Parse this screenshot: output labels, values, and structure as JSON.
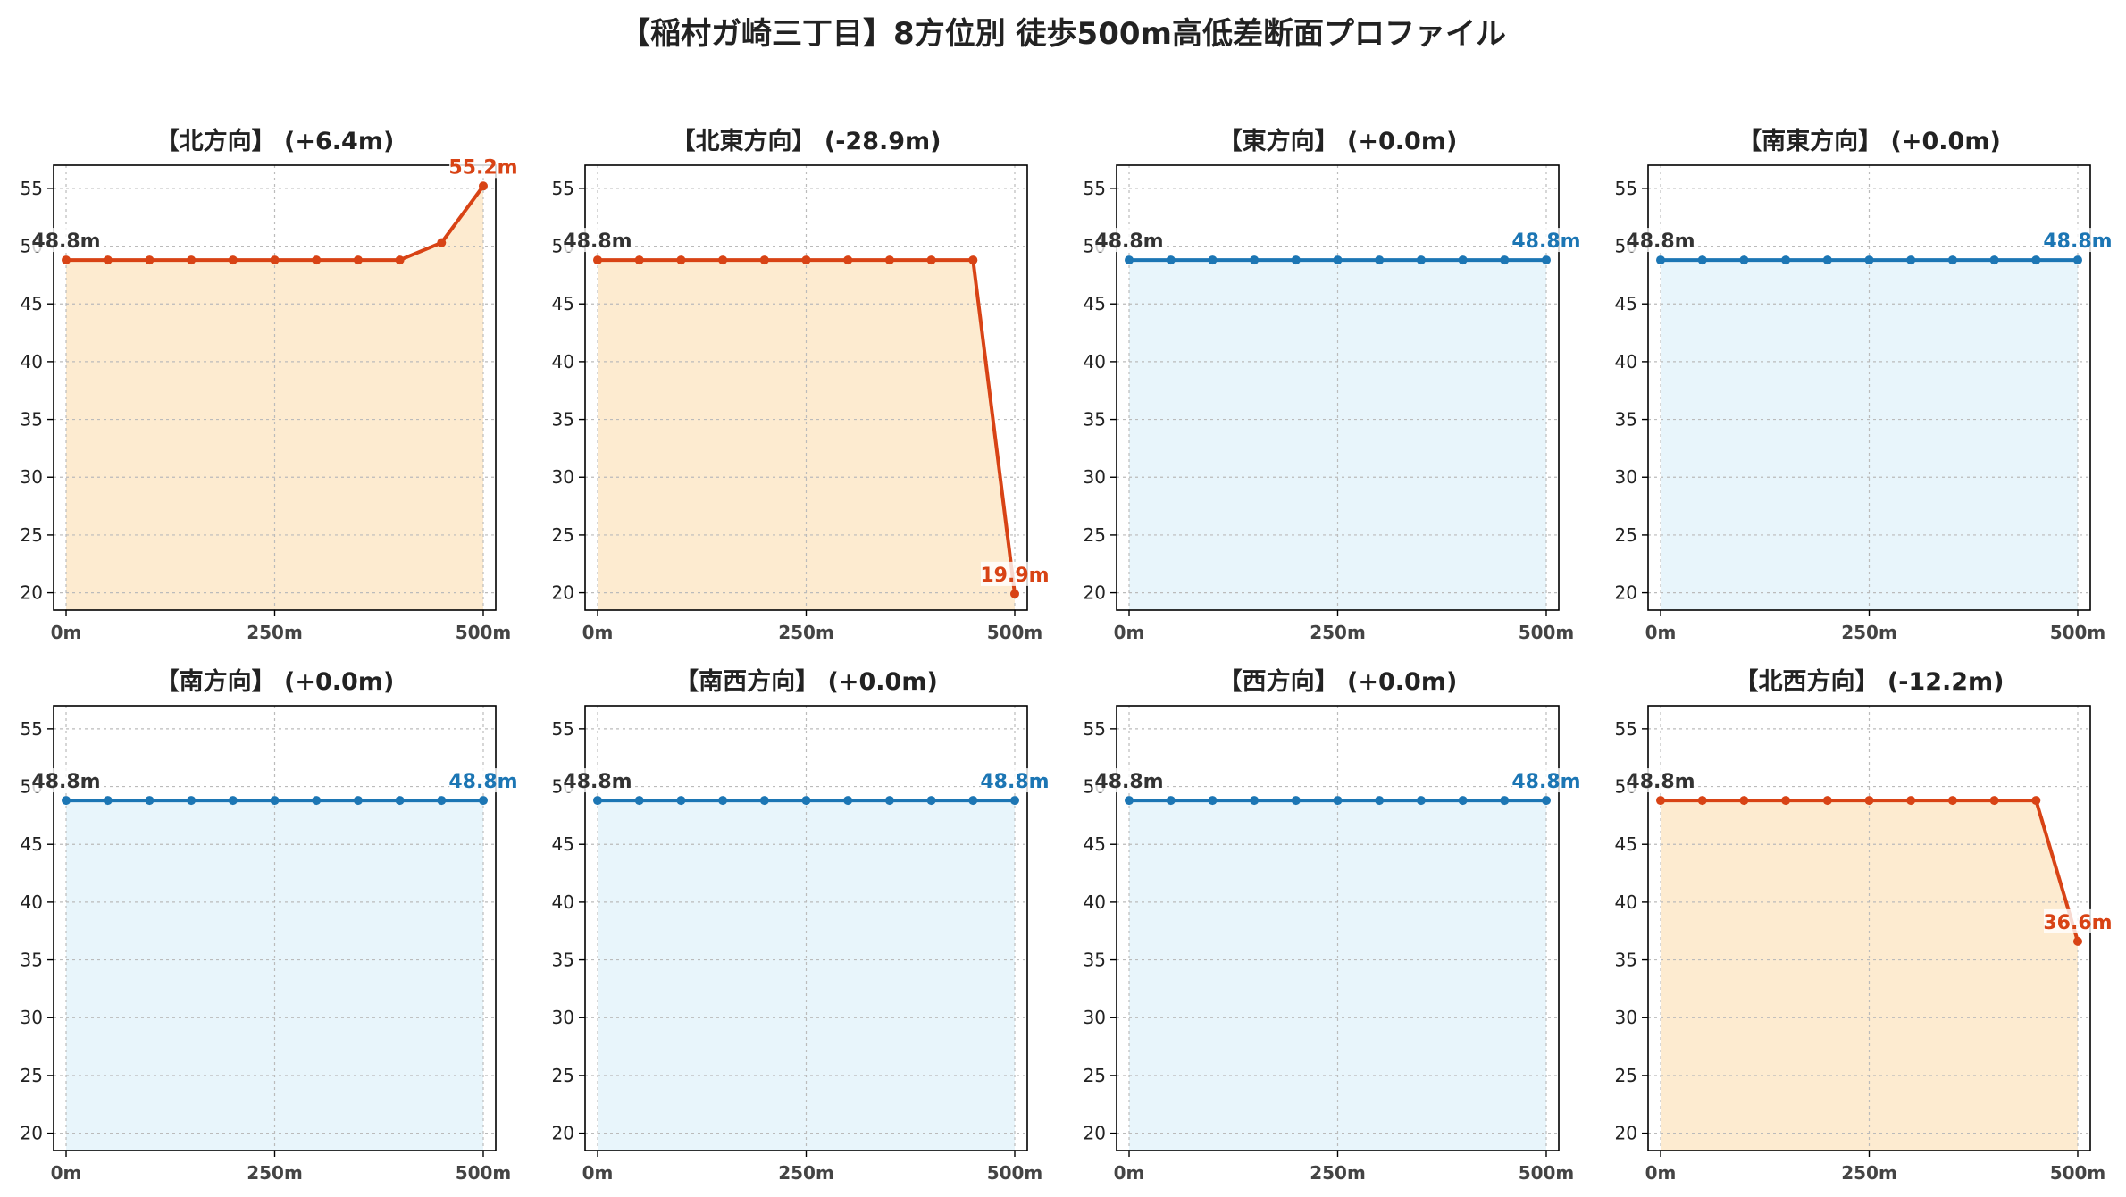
{
  "title": "【稲村ガ崎三丁目】8方位別 徒歩500m高低差断面プロファイル",
  "colors": {
    "rise_fall_line": "#d84315",
    "rise_fall_fill": "#fdebd0",
    "flat_line": "#1c76b4",
    "flat_fill": "#e8f5fb",
    "start_label": "#333333",
    "grid": "#bbbbbb"
  },
  "chart_data": [
    {
      "type": "area",
      "title": "【北方向】 (+6.4m)",
      "style": "change",
      "x": [
        0,
        50,
        100,
        150,
        200,
        250,
        300,
        350,
        400,
        450,
        500
      ],
      "y": [
        48.8,
        48.8,
        48.8,
        48.8,
        48.8,
        48.8,
        48.8,
        48.8,
        48.8,
        50.3,
        55.2
      ],
      "start_label": "48.8m",
      "end_label": "55.2m",
      "xticks": [
        "0m",
        "250m",
        "500m"
      ],
      "yticks": [
        20,
        25,
        30,
        35,
        40,
        45,
        50,
        55
      ],
      "ylim": [
        18.5,
        57
      ],
      "xlim": [
        -15,
        515
      ],
      "grid": true
    },
    {
      "type": "area",
      "title": "【北東方向】 (-28.9m)",
      "style": "change",
      "x": [
        0,
        50,
        100,
        150,
        200,
        250,
        300,
        350,
        400,
        450,
        500
      ],
      "y": [
        48.8,
        48.8,
        48.8,
        48.8,
        48.8,
        48.8,
        48.8,
        48.8,
        48.8,
        48.8,
        19.9
      ],
      "start_label": "48.8m",
      "end_label": "19.9m",
      "xticks": [
        "0m",
        "250m",
        "500m"
      ],
      "yticks": [
        20,
        25,
        30,
        35,
        40,
        45,
        50,
        55
      ],
      "ylim": [
        18.5,
        57
      ],
      "xlim": [
        -15,
        515
      ],
      "grid": true
    },
    {
      "type": "area",
      "title": "【東方向】 (+0.0m)",
      "style": "flat",
      "x": [
        0,
        50,
        100,
        150,
        200,
        250,
        300,
        350,
        400,
        450,
        500
      ],
      "y": [
        48.8,
        48.8,
        48.8,
        48.8,
        48.8,
        48.8,
        48.8,
        48.8,
        48.8,
        48.8,
        48.8
      ],
      "start_label": "48.8m",
      "end_label": "48.8m",
      "xticks": [
        "0m",
        "250m",
        "500m"
      ],
      "yticks": [
        20,
        25,
        30,
        35,
        40,
        45,
        50,
        55
      ],
      "ylim": [
        18.5,
        57
      ],
      "xlim": [
        -15,
        515
      ],
      "grid": true
    },
    {
      "type": "area",
      "title": "【南東方向】 (+0.0m)",
      "style": "flat",
      "x": [
        0,
        50,
        100,
        150,
        200,
        250,
        300,
        350,
        400,
        450,
        500
      ],
      "y": [
        48.8,
        48.8,
        48.8,
        48.8,
        48.8,
        48.8,
        48.8,
        48.8,
        48.8,
        48.8,
        48.8
      ],
      "start_label": "48.8m",
      "end_label": "48.8m",
      "xticks": [
        "0m",
        "250m",
        "500m"
      ],
      "yticks": [
        20,
        25,
        30,
        35,
        40,
        45,
        50,
        55
      ],
      "ylim": [
        18.5,
        57
      ],
      "xlim": [
        -15,
        515
      ],
      "grid": true
    },
    {
      "type": "area",
      "title": "【南方向】 (+0.0m)",
      "style": "flat",
      "x": [
        0,
        50,
        100,
        150,
        200,
        250,
        300,
        350,
        400,
        450,
        500
      ],
      "y": [
        48.8,
        48.8,
        48.8,
        48.8,
        48.8,
        48.8,
        48.8,
        48.8,
        48.8,
        48.8,
        48.8
      ],
      "start_label": "48.8m",
      "end_label": "48.8m",
      "xticks": [
        "0m",
        "250m",
        "500m"
      ],
      "yticks": [
        20,
        25,
        30,
        35,
        40,
        45,
        50,
        55
      ],
      "ylim": [
        18.5,
        57
      ],
      "xlim": [
        -15,
        515
      ],
      "grid": true
    },
    {
      "type": "area",
      "title": "【南西方向】 (+0.0m)",
      "style": "flat",
      "x": [
        0,
        50,
        100,
        150,
        200,
        250,
        300,
        350,
        400,
        450,
        500
      ],
      "y": [
        48.8,
        48.8,
        48.8,
        48.8,
        48.8,
        48.8,
        48.8,
        48.8,
        48.8,
        48.8,
        48.8
      ],
      "start_label": "48.8m",
      "end_label": "48.8m",
      "xticks": [
        "0m",
        "250m",
        "500m"
      ],
      "yticks": [
        20,
        25,
        30,
        35,
        40,
        45,
        50,
        55
      ],
      "ylim": [
        18.5,
        57
      ],
      "xlim": [
        -15,
        515
      ],
      "grid": true
    },
    {
      "type": "area",
      "title": "【西方向】 (+0.0m)",
      "style": "flat",
      "x": [
        0,
        50,
        100,
        150,
        200,
        250,
        300,
        350,
        400,
        450,
        500
      ],
      "y": [
        48.8,
        48.8,
        48.8,
        48.8,
        48.8,
        48.8,
        48.8,
        48.8,
        48.8,
        48.8,
        48.8
      ],
      "start_label": "48.8m",
      "end_label": "48.8m",
      "xticks": [
        "0m",
        "250m",
        "500m"
      ],
      "yticks": [
        20,
        25,
        30,
        35,
        40,
        45,
        50,
        55
      ],
      "ylim": [
        18.5,
        57
      ],
      "xlim": [
        -15,
        515
      ],
      "grid": true
    },
    {
      "type": "area",
      "title": "【北西方向】 (-12.2m)",
      "style": "change",
      "x": [
        0,
        50,
        100,
        150,
        200,
        250,
        300,
        350,
        400,
        450,
        500
      ],
      "y": [
        48.8,
        48.8,
        48.8,
        48.8,
        48.8,
        48.8,
        48.8,
        48.8,
        48.8,
        48.8,
        36.6
      ],
      "start_label": "48.8m",
      "end_label": "36.6m",
      "xticks": [
        "0m",
        "250m",
        "500m"
      ],
      "yticks": [
        20,
        25,
        30,
        35,
        40,
        45,
        50,
        55
      ],
      "ylim": [
        18.5,
        57
      ],
      "xlim": [
        -15,
        515
      ],
      "grid": true
    }
  ]
}
